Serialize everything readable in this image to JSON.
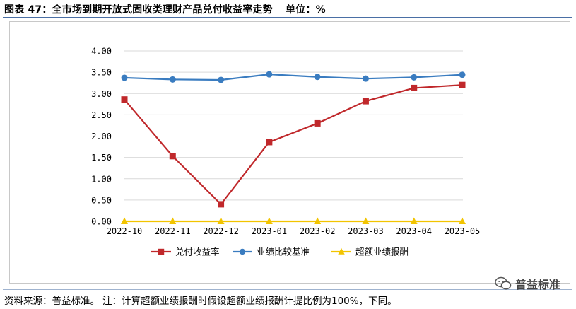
{
  "figure": {
    "title": "图表 47：全市场到期开放式固收类理财产品兑付收益率走势",
    "unit": "单位：%"
  },
  "chart_data": {
    "type": "line",
    "categories": [
      "2022-10",
      "2022-11",
      "2022-12",
      "2023-01",
      "2023-02",
      "2023-03",
      "2023-04",
      "2023-05"
    ],
    "series": [
      {
        "name": "兑付收益率",
        "color": "#c0282b",
        "marker": "square",
        "values": [
          2.86,
          1.53,
          0.4,
          1.86,
          2.3,
          2.82,
          3.13,
          3.2
        ]
      },
      {
        "name": "业绩比较基准",
        "color": "#3a7cc0",
        "marker": "circle",
        "values": [
          3.37,
          3.33,
          3.32,
          3.45,
          3.39,
          3.35,
          3.38,
          3.44
        ]
      },
      {
        "name": "超额业绩报酬",
        "color": "#f2c400",
        "marker": "triangle",
        "values": [
          0.0,
          0.0,
          0.0,
          0.0,
          0.0,
          0.0,
          0.0,
          0.0
        ]
      }
    ],
    "ylim": [
      0,
      4
    ],
    "yticks": [
      "0.00",
      "0.50",
      "1.00",
      "1.50",
      "2.00",
      "2.50",
      "3.00",
      "3.50",
      "4.00"
    ],
    "grid": true,
    "legend": "bottom",
    "title": "",
    "xlabel": "",
    "ylabel": ""
  },
  "footer": {
    "source": "资料来源：普益标准。",
    "note": "注：计算超额业绩报酬时假设超额业绩报酬计提比例为100%，下同。"
  },
  "watermark": {
    "text": "普益标准",
    "icon": "wechat-icon"
  }
}
